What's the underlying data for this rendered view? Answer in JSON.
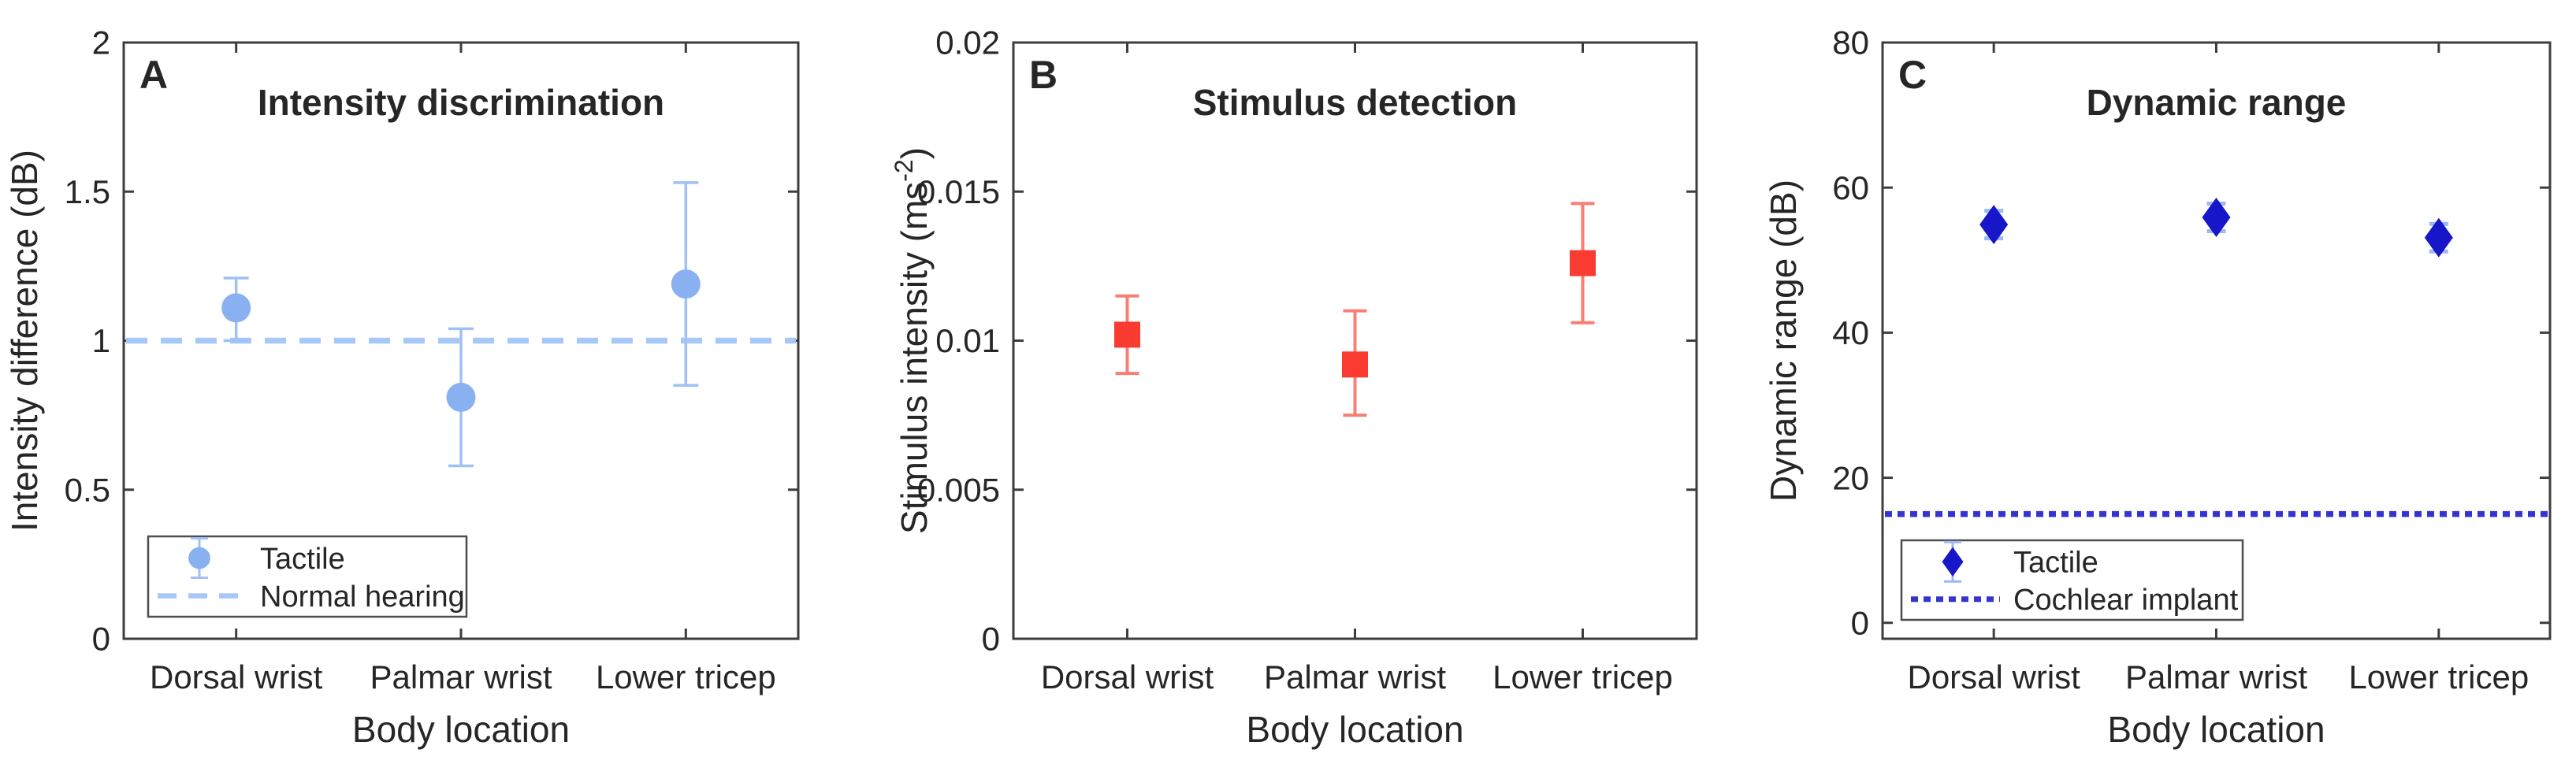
{
  "figure": {
    "background": "#ffffff",
    "axis_color": "#3d3d3d",
    "tick_text_color": "#262626",
    "title_color": "#000000"
  },
  "chart_data": [
    {
      "type": "scatter",
      "panel_label": "A",
      "title": "Intensity discrimination",
      "xlabel": "Body location",
      "ylabel_parts": [
        {
          "text": "Intensity difference (dB)"
        }
      ],
      "categories": [
        "Dorsal wrist",
        "Palmar wrist",
        "Lower tricep"
      ],
      "ylim": [
        0,
        2
      ],
      "yticks": [
        0,
        0.5,
        1,
        1.5,
        2
      ],
      "ytick_labels": [
        "0",
        "0.5",
        "1",
        "1.5",
        "2"
      ],
      "grid": false,
      "series": [
        {
          "name": "Tactile",
          "marker": "circle",
          "marker_color": "#89b1f1",
          "errorbar_color": "#9fc1f5",
          "values": [
            1.11,
            0.81,
            1.19
          ],
          "err_low": [
            1.0,
            0.58,
            0.85
          ],
          "err_high": [
            1.21,
            1.04,
            1.53
          ]
        }
      ],
      "reference_line": {
        "label": "Normal hearing",
        "y": 1.0,
        "style": "dashed",
        "color": "#a6c8f7"
      },
      "legend": {
        "position": "bottom-left",
        "entries": [
          {
            "label": "Tactile",
            "sample": "marker"
          },
          {
            "label": "Normal hearing",
            "sample": "dashed-line"
          }
        ]
      }
    },
    {
      "type": "scatter",
      "panel_label": "B",
      "title": "Stimulus detection",
      "xlabel": "Body location",
      "ylabel_parts": [
        {
          "text": "Stimulus intensity (ms"
        },
        {
          "text": "-2",
          "sup": true
        },
        {
          "text": ")"
        }
      ],
      "categories": [
        "Dorsal wrist",
        "Palmar wrist",
        "Lower tricep"
      ],
      "ylim": [
        0,
        0.02
      ],
      "yticks": [
        0,
        0.005,
        0.01,
        0.015,
        0.02
      ],
      "ytick_labels": [
        "0",
        "0.005",
        "0.01",
        "0.015",
        "0.02"
      ],
      "grid": false,
      "series": [
        {
          "name": "Tactile",
          "marker": "square",
          "marker_color": "#f93b31",
          "errorbar_color": "#f97e74",
          "values": [
            0.0102,
            0.0092,
            0.0126
          ],
          "err_low": [
            0.0089,
            0.0075,
            0.0106
          ],
          "err_high": [
            0.0115,
            0.011,
            0.0146
          ]
        }
      ],
      "reference_line": null,
      "legend": null
    },
    {
      "type": "scatter",
      "panel_label": "C",
      "title": "Dynamic range",
      "xlabel": "Body location",
      "ylabel_parts": [
        {
          "text": "Dynamic range (dB)"
        }
      ],
      "categories": [
        "Dorsal wrist",
        "Palmar wrist",
        "Lower tricep"
      ],
      "ylim": [
        -2.2,
        80
      ],
      "yticks": [
        0,
        20,
        40,
        60,
        80
      ],
      "ytick_labels": [
        "0",
        "20",
        "40",
        "60",
        "80"
      ],
      "grid": false,
      "series": [
        {
          "name": "Tactile",
          "marker": "diamond",
          "marker_color": "#1717c9",
          "errorbar_color": "#9cb9f1",
          "values": [
            54.9,
            55.9,
            53.1
          ],
          "err_low": [
            53.0,
            54.0,
            51.2
          ],
          "err_high": [
            56.8,
            57.8,
            55.0
          ]
        }
      ],
      "reference_line": {
        "label": "Cochlear implant",
        "y": 15,
        "style": "dotted",
        "color": "#3434d2"
      },
      "legend": {
        "position": "bottom-left",
        "entries": [
          {
            "label": "Tactile",
            "sample": "marker"
          },
          {
            "label": "Cochlear implant",
            "sample": "dotted-line"
          }
        ]
      }
    }
  ]
}
